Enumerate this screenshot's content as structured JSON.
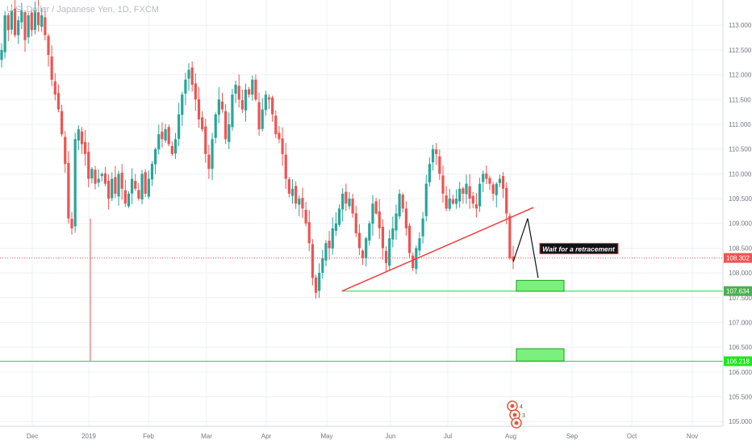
{
  "header": {
    "symbol": "U.S. Dollar / Japanese Yen, 1D, FXCM"
  },
  "colors": {
    "up": "#26a69a",
    "down": "#ef5350",
    "trendline": "#f23c3c",
    "support": "#2bd14b",
    "zone_fill": "#7cf07c",
    "price_tag": "#ef5350",
    "support_tag": "#4caf50",
    "support2_tag": "#1ee61e",
    "axis_text": "#737782",
    "grid": "#eef0f4"
  },
  "chart_data": {
    "type": "candlestick",
    "symbol": "USDJPY",
    "timeframe": "1D",
    "x_tick_labels": [
      "Dec",
      "2019",
      "Feb",
      "Mar",
      "Apr",
      "May",
      "Jun",
      "Jul",
      "Aug",
      "Sep",
      "Oct",
      "Nov"
    ],
    "y_tick_labels": [
      "113.000",
      "112.500",
      "112.000",
      "111.500",
      "111.000",
      "110.500",
      "110.000",
      "109.500",
      "109.000",
      "108.500",
      "108.000",
      "107.500",
      "107.000",
      "106.500",
      "106.000",
      "105.500",
      "105.000"
    ],
    "ylim": [
      104.85,
      113.4
    ],
    "current_price": 108.302,
    "price_label": "108.302",
    "support_levels": [
      {
        "value": 107.634,
        "label": "107.634"
      },
      {
        "value": 106.218,
        "label": "106.218"
      }
    ],
    "annotation": "Wait for a retracement",
    "ohlc": [
      {
        "month_start": "Dec",
        "close_path": [
          112.5,
          113.2,
          112.9,
          113.3,
          112.8,
          113.1,
          113.3,
          112.7,
          113.2,
          112.9,
          113.3,
          113.0,
          113.2,
          112.8
        ]
      },
      {
        "month_start": "late Dec",
        "close_path": [
          112.4,
          111.9,
          111.6,
          111.3,
          110.8,
          110.2,
          109.1,
          108.9
        ]
      },
      {
        "month_start": "2019",
        "close_path": [
          110.7,
          110.9,
          110.6,
          110.4,
          109.9,
          110.1,
          109.8,
          109.9,
          110.0,
          109.8,
          109.5,
          109.9,
          109.6,
          110.0,
          109.7,
          109.4,
          109.6,
          109.9,
          109.7,
          109.5,
          110.0
        ]
      },
      {
        "month_start": "Feb",
        "close_path": [
          109.6,
          109.9,
          110.2,
          110.5,
          110.8,
          110.7,
          110.9,
          110.6,
          110.4,
          110.7,
          111.2,
          111.6,
          111.9,
          112.1,
          111.8,
          111.5,
          111.1
        ]
      },
      {
        "month_start": "Mar",
        "close_path": [
          110.9,
          110.4,
          110.1,
          110.7,
          111.2,
          111.5,
          111.3,
          110.7,
          111.0,
          111.6,
          111.8,
          111.5,
          111.3,
          111.7,
          111.6,
          111.9,
          111.5,
          110.9,
          111.3,
          111.6,
          111.5,
          111.2,
          110.8,
          110.7
        ]
      },
      {
        "month_start": "Apr",
        "close_path": [
          110.4,
          109.9,
          109.6,
          109.7,
          109.4,
          109.5,
          109.3,
          109.0,
          108.6,
          107.9,
          107.6,
          108.0,
          108.3,
          108.6,
          108.5,
          108.9,
          109.0,
          109.3,
          109.6,
          109.4,
          109.5,
          109.2,
          108.8,
          108.5,
          108.3,
          108.7,
          109.0,
          109.4,
          109.2,
          108.9
        ]
      },
      {
        "month_start": "May",
        "close_path": [
          108.5,
          108.2,
          108.7,
          108.9,
          109.2,
          109.6,
          109.3,
          108.9,
          108.4,
          108.1,
          108.5,
          108.7,
          109.1,
          109.8,
          110.2,
          110.5,
          110.4,
          110.0,
          109.6,
          109.3,
          109.5,
          109.4
        ]
      },
      {
        "month_start": "Jun",
        "close_path": [
          109.5,
          109.7,
          109.6,
          109.8,
          109.5,
          109.4,
          109.3,
          109.8,
          110.0,
          109.9,
          109.8,
          109.6,
          109.8,
          109.9,
          109.7,
          109.2,
          108.3,
          108.25
        ]
      }
    ]
  }
}
